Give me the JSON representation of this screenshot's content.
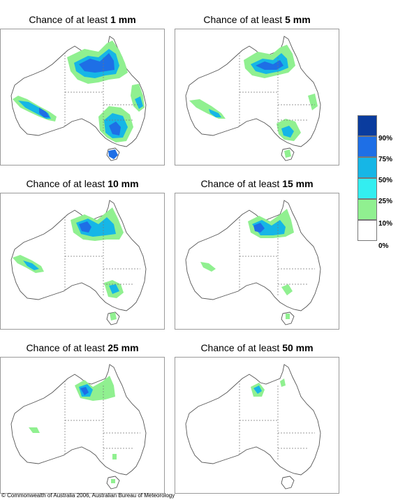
{
  "panels": [
    {
      "title_prefix": "Chance of at least",
      "threshold": "1 mm"
    },
    {
      "title_prefix": "Chance of at least",
      "threshold": "5 mm"
    },
    {
      "title_prefix": "Chance of at least",
      "threshold": "10 mm"
    },
    {
      "title_prefix": "Chance of at least",
      "threshold": "15 mm"
    },
    {
      "title_prefix": "Chance of at least",
      "threshold": "25 mm"
    },
    {
      "title_prefix": "Chance of at least",
      "threshold": "50 mm"
    }
  ],
  "legend": {
    "labels": [
      "90%",
      "75%",
      "50%",
      "25%",
      "10%",
      "0%"
    ],
    "colors": [
      "#0a3c9e",
      "#1e6fe6",
      "#16b6e6",
      "#33eef0",
      "#90f090",
      "#ffffff"
    ]
  },
  "copyright": "© Commonwealth of Australia 2006, Australian Bureau of Meteorology"
}
